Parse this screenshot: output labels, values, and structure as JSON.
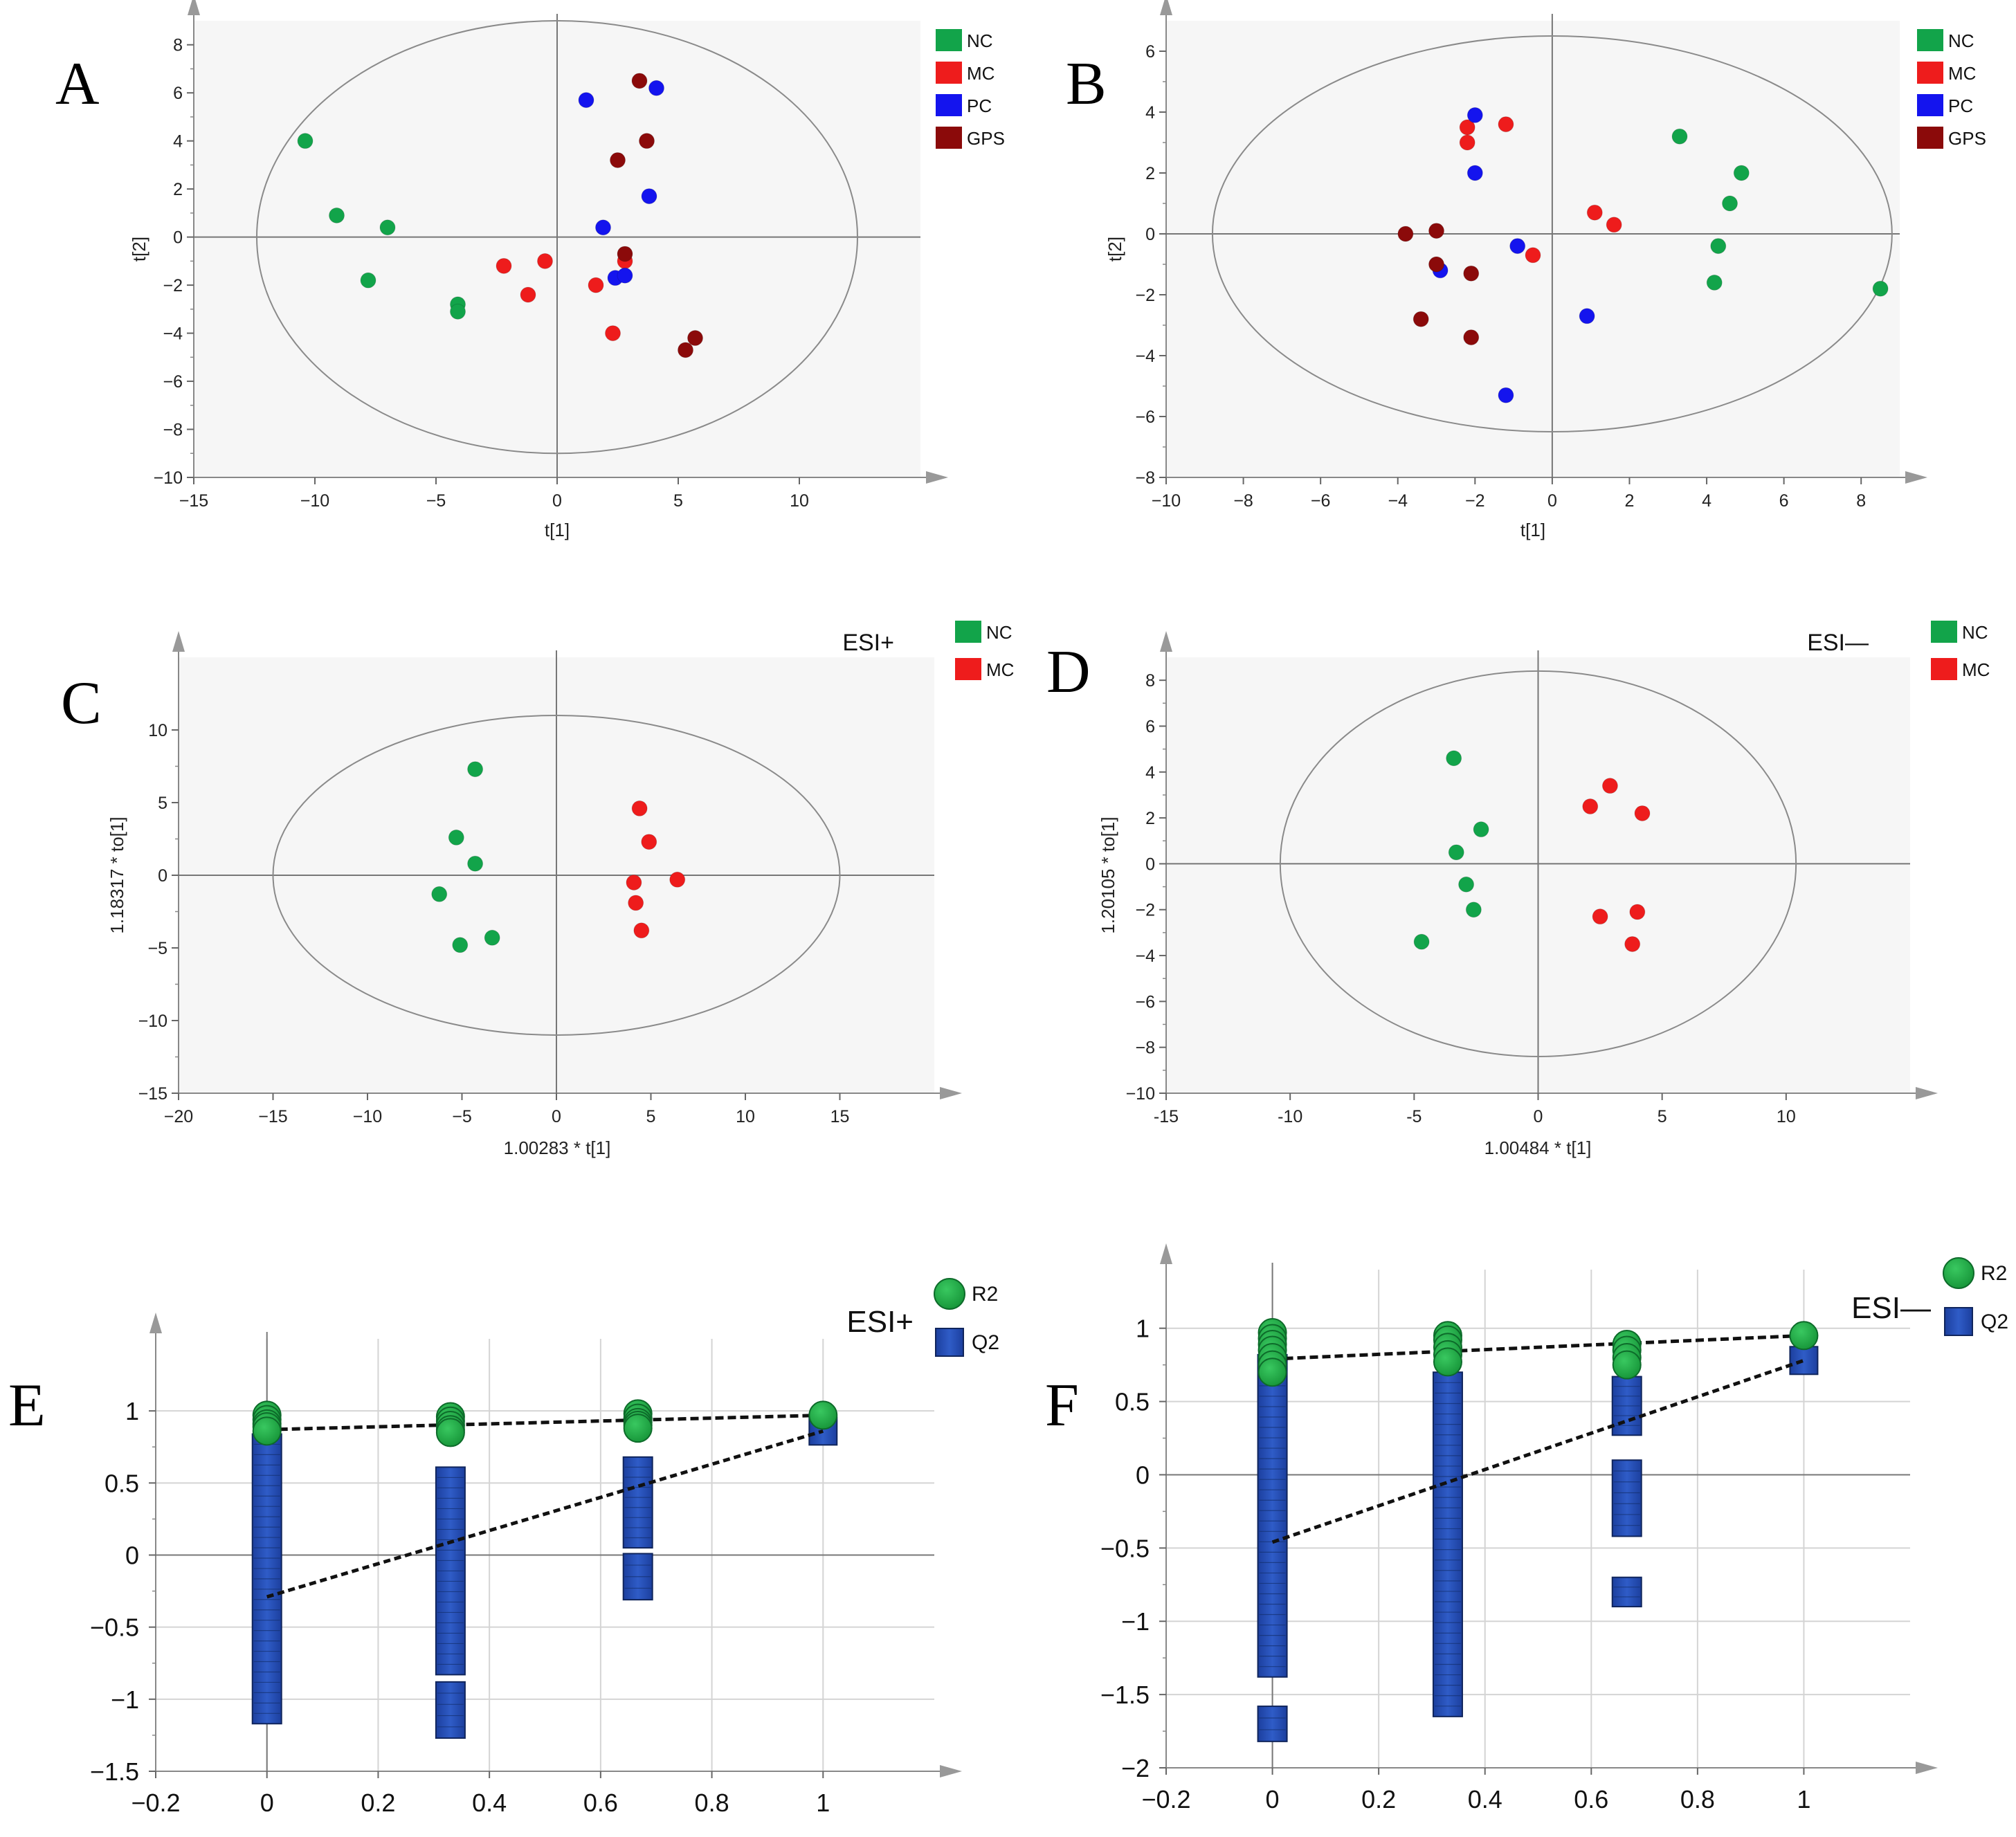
{
  "colors": {
    "NC": "#12a44a",
    "MC": "#ee1c1c",
    "PC": "#1414ee",
    "GPS": "#8b0a0a",
    "R2": "#1fae43",
    "Q2": "#2350b5"
  },
  "chart_data": [
    {
      "panel": "A",
      "type": "scatter",
      "xlabel": "t[1]",
      "ylabel": "t[2]",
      "xlim": [
        -15,
        15
      ],
      "ylim": [
        -10,
        9
      ],
      "xticks": [
        -15,
        -10,
        -5,
        0,
        5,
        10
      ],
      "yticks": [
        -10,
        -8,
        -6,
        -4,
        -2,
        0,
        2,
        4,
        6,
        8
      ],
      "ellipse": {
        "cx": 0,
        "cy": 0,
        "rx": 12.4,
        "ry": 9
      },
      "legend": {
        "label": "",
        "entries": [
          "NC",
          "MC",
          "PC",
          "GPS"
        ]
      },
      "series": [
        {
          "name": "NC",
          "points": [
            [
              -10.4,
              4.0
            ],
            [
              -9.1,
              0.9
            ],
            [
              -7.0,
              0.4
            ],
            [
              -7.8,
              -1.8
            ],
            [
              -4.1,
              -2.8
            ],
            [
              -4.1,
              -3.1
            ]
          ]
        },
        {
          "name": "MC",
          "points": [
            [
              -2.2,
              -1.2
            ],
            [
              -0.5,
              -1.0
            ],
            [
              -1.2,
              -2.4
            ],
            [
              1.6,
              -2.0
            ],
            [
              2.8,
              -1.0
            ],
            [
              2.3,
              -4.0
            ]
          ]
        },
        {
          "name": "PC",
          "points": [
            [
              1.2,
              5.7
            ],
            [
              4.1,
              6.2
            ],
            [
              3.8,
              1.7
            ],
            [
              1.9,
              0.4
            ],
            [
              2.4,
              -1.7
            ],
            [
              2.8,
              -1.6
            ]
          ]
        },
        {
          "name": "GPS",
          "points": [
            [
              3.4,
              6.5
            ],
            [
              3.7,
              4.0
            ],
            [
              2.5,
              3.2
            ],
            [
              2.8,
              -0.7
            ],
            [
              5.7,
              -4.2
            ],
            [
              5.3,
              -4.7
            ]
          ]
        }
      ]
    },
    {
      "panel": "B",
      "type": "scatter",
      "xlabel": "t[1]",
      "ylabel": "t[2]",
      "xlim": [
        -10,
        9
      ],
      "ylim": [
        -8,
        7
      ],
      "xticks": [
        -10,
        -8,
        -6,
        -4,
        -2,
        0,
        2,
        4,
        6,
        8
      ],
      "yticks": [
        -8,
        -6,
        -4,
        -2,
        0,
        2,
        4,
        6
      ],
      "ellipse": {
        "cx": 0,
        "cy": 0,
        "rx": 8.8,
        "ry": 6.5
      },
      "legend": {
        "label": "",
        "entries": [
          "NC",
          "MC",
          "PC",
          "GPS"
        ]
      },
      "series": [
        {
          "name": "NC",
          "points": [
            [
              3.3,
              3.2
            ],
            [
              4.9,
              2.0
            ],
            [
              4.6,
              1.0
            ],
            [
              4.3,
              -0.4
            ],
            [
              4.2,
              -1.6
            ],
            [
              8.5,
              -1.8
            ]
          ]
        },
        {
          "name": "MC",
          "points": [
            [
              -2.2,
              3.5
            ],
            [
              -2.2,
              3.0
            ],
            [
              -1.2,
              3.6
            ],
            [
              1.1,
              0.7
            ],
            [
              1.6,
              0.3
            ],
            [
              -0.5,
              -0.7
            ]
          ]
        },
        {
          "name": "PC",
          "points": [
            [
              -2.0,
              3.9
            ],
            [
              -2.0,
              2.0
            ],
            [
              -0.9,
              -0.4
            ],
            [
              -2.9,
              -1.2
            ],
            [
              0.9,
              -2.7
            ],
            [
              -1.2,
              -5.3
            ]
          ]
        },
        {
          "name": "GPS",
          "points": [
            [
              -3.8,
              0.0
            ],
            [
              -3.0,
              0.1
            ],
            [
              -3.0,
              -1.0
            ],
            [
              -2.1,
              -1.3
            ],
            [
              -3.4,
              -2.8
            ],
            [
              -2.1,
              -3.4
            ]
          ]
        }
      ]
    },
    {
      "panel": "C",
      "type": "scatter",
      "xlabel": "1.00283 * t[1]",
      "ylabel": "1.18317 * to[1]",
      "xlim": [
        -20,
        20
      ],
      "ylim": [
        -15,
        15
      ],
      "xticks": [
        -20,
        -15,
        -10,
        -5,
        0,
        5,
        10,
        15
      ],
      "yticks": [
        -15,
        -10,
        -5,
        0,
        5,
        10
      ],
      "ellipse": {
        "cx": 0,
        "cy": 0,
        "rx": 15,
        "ry": 11
      },
      "legend": {
        "label": "ESI+",
        "entries": [
          "NC",
          "MC"
        ]
      },
      "series": [
        {
          "name": "NC",
          "points": [
            [
              -4.3,
              7.3
            ],
            [
              -5.3,
              2.6
            ],
            [
              -4.3,
              0.8
            ],
            [
              -6.2,
              -1.3
            ],
            [
              -3.4,
              -4.3
            ],
            [
              -5.1,
              -4.8
            ]
          ]
        },
        {
          "name": "MC",
          "points": [
            [
              4.4,
              4.6
            ],
            [
              4.9,
              2.3
            ],
            [
              4.1,
              -0.5
            ],
            [
              6.4,
              -0.3
            ],
            [
              4.2,
              -1.9
            ],
            [
              4.5,
              -3.8
            ]
          ]
        }
      ]
    },
    {
      "panel": "D",
      "type": "scatter",
      "xlabel": "1.00484 * t[1]",
      "ylabel": "1.20105 * to[1]",
      "xlim": [
        -15,
        15
      ],
      "ylim": [
        -10,
        9
      ],
      "xticks": [
        -15,
        -10,
        -5,
        0,
        5,
        10
      ],
      "xtick_labels": [
        "-15",
        "-10",
        "-5",
        "0",
        "5",
        "10"
      ],
      "yticks": [
        -10,
        -8,
        -6,
        -4,
        -2,
        0,
        2,
        4,
        6,
        8
      ],
      "ellipse": {
        "cx": 0,
        "cy": 0,
        "rx": 10.4,
        "ry": 8.4
      },
      "legend": {
        "label": "ESI—",
        "entries": [
          "NC",
          "MC"
        ]
      },
      "series": [
        {
          "name": "NC",
          "points": [
            [
              -3.4,
              4.6
            ],
            [
              -2.3,
              1.5
            ],
            [
              -3.3,
              0.5
            ],
            [
              -2.9,
              -0.9
            ],
            [
              -2.6,
              -2.0
            ],
            [
              -4.7,
              -3.4
            ]
          ]
        },
        {
          "name": "MC",
          "points": [
            [
              2.9,
              3.4
            ],
            [
              2.1,
              2.5
            ],
            [
              4.2,
              2.2
            ],
            [
              2.5,
              -2.3
            ],
            [
              4.0,
              -2.1
            ],
            [
              3.8,
              -3.5
            ]
          ]
        }
      ]
    },
    {
      "panel": "E",
      "type": "scatter",
      "xlabel": "",
      "ylabel": "",
      "xlim": [
        -0.2,
        1.2
      ],
      "ylim": [
        -1.5,
        1.5
      ],
      "xticks": [
        -0.2,
        0,
        0.2,
        0.4,
        0.6,
        0.8,
        1
      ],
      "xtick_labels": [
        "−0.2",
        "0",
        "0.2",
        "0.4",
        "0.6",
        "0.8",
        "1"
      ],
      "yticks": [
        -1.5,
        -1,
        -0.5,
        0,
        0.5,
        1
      ],
      "ytick_labels": [
        "−1.5",
        "−1",
        "−0.5",
        "0",
        "0.5",
        "1"
      ],
      "legend": {
        "label": "ESI+",
        "entries": [
          "R2",
          "Q2"
        ]
      },
      "r2_points": [
        [
          0,
          0.97
        ],
        [
          0,
          0.94
        ],
        [
          0,
          0.91
        ],
        [
          0,
          0.89
        ],
        [
          0,
          0.86
        ],
        [
          0.33,
          0.96
        ],
        [
          0.33,
          0.93
        ],
        [
          0.33,
          0.9
        ],
        [
          0.33,
          0.87
        ],
        [
          0.33,
          0.85
        ],
        [
          0.667,
          0.98
        ],
        [
          0.667,
          0.95
        ],
        [
          0.667,
          0.92
        ],
        [
          0.667,
          0.9
        ],
        [
          0.667,
          0.88
        ],
        [
          1,
          0.97
        ]
      ],
      "q2_bars": [
        {
          "x": 0,
          "top": 0.84,
          "bottom": -1.17
        },
        {
          "x": 0.33,
          "top": 0.61,
          "bottom": -0.83
        },
        {
          "x": 0.33,
          "top": -0.88,
          "bottom": -1.27
        },
        {
          "x": 0.667,
          "top": 0.68,
          "bottom": 0.05
        },
        {
          "x": 0.667,
          "top": 0.01,
          "bottom": -0.31
        }
      ],
      "q2_point": [
        1,
        0.86
      ],
      "r2_line": {
        "intercept": 0.87,
        "slope": 0.1
      },
      "q2_line": {
        "intercept": -0.29,
        "slope": 1.15
      }
    },
    {
      "panel": "F",
      "type": "scatter",
      "xlabel": "",
      "ylabel": "",
      "xlim": [
        -0.2,
        1.2
      ],
      "ylim": [
        -2,
        1.4
      ],
      "xticks": [
        -0.2,
        0,
        0.2,
        0.4,
        0.6,
        0.8,
        1
      ],
      "xtick_labels": [
        "−0.2",
        "0",
        "0.2",
        "0.4",
        "0.6",
        "0.8",
        "1"
      ],
      "yticks": [
        -2,
        -1.5,
        -1,
        -0.5,
        0,
        0.5,
        1
      ],
      "ytick_labels": [
        "−2",
        "−1.5",
        "−1",
        "−0.5",
        "0",
        "0.5",
        "1"
      ],
      "legend": {
        "label": "ESI—",
        "entries": [
          "R2",
          "Q2"
        ]
      },
      "r2_points": [
        [
          0,
          0.97
        ],
        [
          0,
          0.93
        ],
        [
          0,
          0.89
        ],
        [
          0,
          0.85
        ],
        [
          0,
          0.8
        ],
        [
          0,
          0.75
        ],
        [
          0,
          0.7
        ],
        [
          0.33,
          0.95
        ],
        [
          0.33,
          0.92
        ],
        [
          0.33,
          0.87
        ],
        [
          0.33,
          0.82
        ],
        [
          0.33,
          0.77
        ],
        [
          0.667,
          0.89
        ],
        [
          0.667,
          0.85
        ],
        [
          0.667,
          0.8
        ],
        [
          0.667,
          0.75
        ],
        [
          1,
          0.95
        ]
      ],
      "q2_bars": [
        {
          "x": 0,
          "top": 0.82,
          "bottom": -1.38
        },
        {
          "x": 0,
          "top": -1.58,
          "bottom": -1.82
        },
        {
          "x": 0.33,
          "top": 0.7,
          "bottom": -1.65
        },
        {
          "x": 0.667,
          "top": 0.67,
          "bottom": 0.27
        },
        {
          "x": 0.667,
          "top": 0.1,
          "bottom": -0.42
        },
        {
          "x": 0.667,
          "top": -0.7,
          "bottom": -0.9
        }
      ],
      "q2_point": [
        1,
        0.78
      ],
      "r2_line": {
        "intercept": 0.79,
        "slope": 0.16
      },
      "q2_line": {
        "intercept": -0.46,
        "slope": 1.24
      }
    }
  ]
}
